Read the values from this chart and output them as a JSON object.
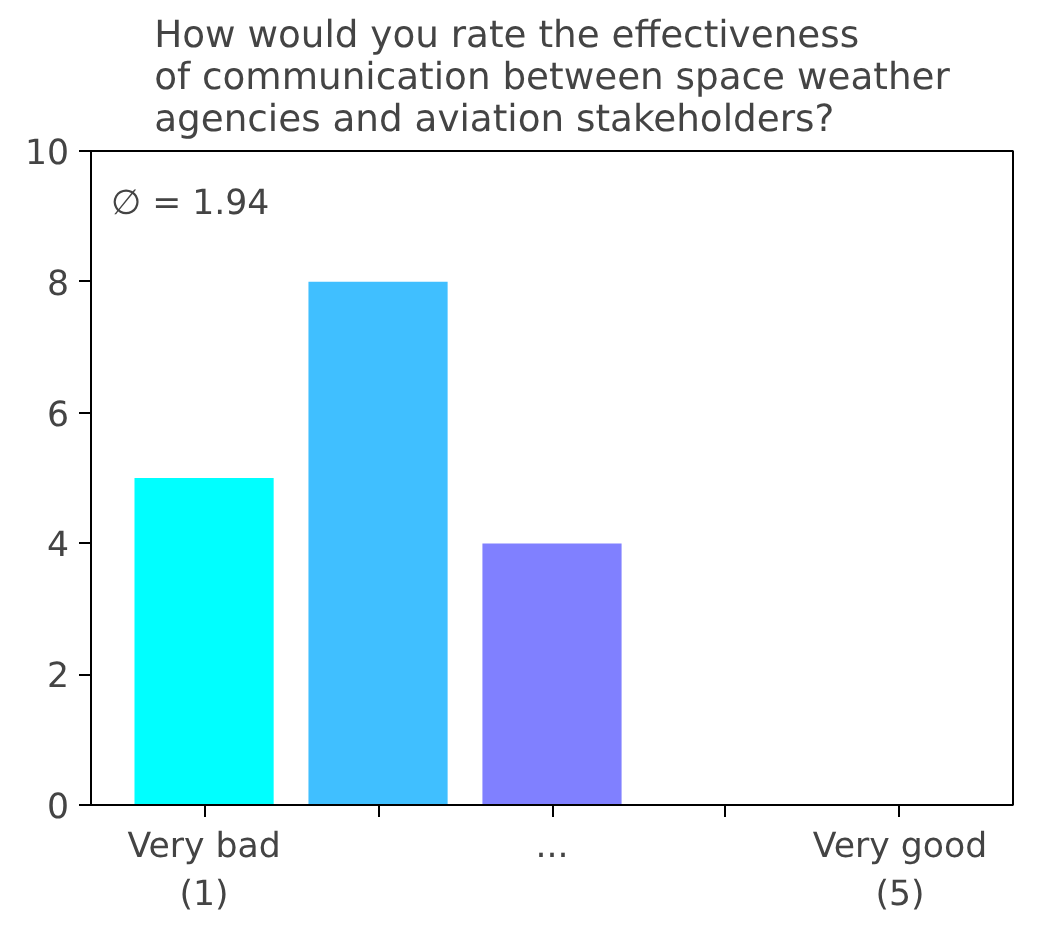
{
  "chart_data": {
    "type": "bar",
    "title": "How would you rate the effectiveness\nof communication between space weather\nagencies and aviation stakeholders?",
    "categories": [
      "Very bad\n(1)",
      null,
      "...",
      null,
      "Very good\n(5)"
    ],
    "values": [
      5,
      8,
      4,
      0,
      0
    ],
    "colors": [
      "#00ffff",
      "#40bfff",
      "#8080ff",
      "#bf40ff",
      "#ff00ff"
    ],
    "ylim": [
      0,
      10
    ],
    "yticks": [
      0,
      2,
      4,
      6,
      8,
      10
    ],
    "grid": false,
    "annotations": [
      "∅ = 1.94"
    ]
  }
}
